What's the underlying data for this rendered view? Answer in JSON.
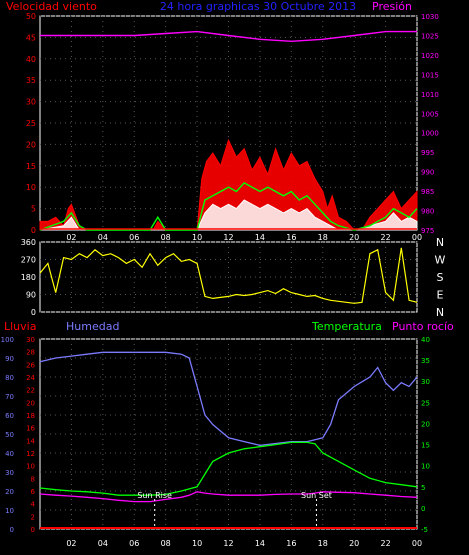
{
  "chart_data": [
    {
      "type": "line",
      "title": "24 hora graphicas 30 Octubre 2013",
      "left_label": "Velocidad viento",
      "right_label": "Presión",
      "x_ticks": [
        "02",
        "04",
        "06",
        "08",
        "10",
        "12",
        "14",
        "16",
        "18",
        "20",
        "22",
        "00"
      ],
      "y_left_ticks": [
        0,
        5,
        10,
        15,
        20,
        25,
        30,
        35,
        40,
        45,
        50
      ],
      "y_left_range": [
        0,
        50
      ],
      "y_right_ticks": [
        975,
        980,
        985,
        990,
        995,
        1000,
        1005,
        1010,
        1015,
        1020,
        1025,
        1030
      ],
      "y_right_range": [
        975,
        1030
      ],
      "grid": true,
      "colors": {
        "gust": "#ff0000",
        "wind": "#00ff00",
        "avg": "#ffffff",
        "pressure": "#ff00ff",
        "baseline": "#ff0000"
      },
      "series": [
        {
          "key": "pressure",
          "x": [
            0,
            2,
            4,
            6,
            8,
            10,
            12,
            14,
            16,
            18,
            20,
            22,
            24
          ],
          "values": [
            1025,
            1025,
            1025,
            1025,
            1025.5,
            1026,
            1025,
            1024,
            1023.5,
            1024,
            1025,
            1026,
            1026
          ]
        },
        {
          "key": "gust",
          "x": [
            0,
            0.5,
            1,
            1.5,
            1.8,
            2,
            2.5,
            3,
            5,
            7.2,
            7.5,
            8,
            10,
            10.3,
            10.6,
            11,
            11.5,
            12,
            12.5,
            13,
            13.5,
            14,
            14.5,
            15,
            15.5,
            16,
            16.5,
            17,
            17.5,
            18,
            18.3,
            18.6,
            19,
            19.5,
            20,
            20.5,
            21,
            21.5,
            22,
            22.5,
            23,
            23.5,
            24
          ],
          "values": [
            2,
            2,
            3,
            1,
            5,
            6,
            1,
            0,
            0,
            0,
            2,
            0,
            0,
            12,
            16,
            18,
            15,
            21,
            17,
            19,
            14,
            17,
            13,
            19,
            14,
            18,
            15,
            16,
            12,
            9,
            5,
            8,
            3,
            2,
            0,
            0,
            3,
            5,
            7,
            9,
            5,
            7,
            9
          ]
        },
        {
          "key": "wind",
          "x": [
            0,
            1.5,
            2,
            2.5,
            3,
            7,
            7.5,
            8,
            10,
            10.5,
            11,
            11.5,
            12,
            12.5,
            13,
            13.5,
            14,
            14.5,
            15,
            15.5,
            16,
            16.5,
            17,
            17.5,
            18,
            18.5,
            19,
            20,
            21,
            21.5,
            22,
            22.5,
            23,
            23.5,
            24
          ],
          "values": [
            0,
            2,
            4,
            1,
            0,
            0,
            3,
            0,
            0,
            7,
            8,
            9,
            10,
            9,
            11,
            10,
            9,
            10,
            9,
            8,
            9,
            7,
            8,
            6,
            4,
            2,
            1,
            0,
            1,
            2,
            3,
            5,
            4,
            3,
            5
          ]
        },
        {
          "key": "avg",
          "x": [
            0,
            1.5,
            2,
            2.5,
            3,
            10,
            10.5,
            11,
            11.5,
            12,
            12.5,
            13,
            13.5,
            14,
            14.5,
            15,
            15.5,
            16,
            16.5,
            17,
            17.5,
            18,
            18.5,
            19,
            20,
            21,
            22,
            22.5,
            23,
            23.5,
            24
          ],
          "values": [
            0,
            1,
            3,
            0,
            0,
            0,
            4,
            6,
            5,
            6,
            5,
            7,
            6,
            5,
            6,
            5,
            4,
            5,
            4,
            5,
            3,
            2,
            1,
            0,
            0,
            1,
            2,
            4,
            2,
            3,
            2
          ]
        }
      ]
    },
    {
      "type": "scatter",
      "y_ticks": [
        0,
        90,
        180,
        270,
        360
      ],
      "y_range": [
        0,
        360
      ],
      "compass": [
        "N",
        "W",
        "S",
        "E",
        "N"
      ],
      "x": [
        0,
        0.5,
        1,
        1.5,
        2,
        2.5,
        3,
        3.5,
        4,
        4.5,
        5,
        5.5,
        6,
        6.5,
        7,
        7.5,
        8,
        8.5,
        9,
        9.5,
        10,
        10.5,
        11,
        11.5,
        12,
        12.5,
        13,
        13.5,
        14,
        14.5,
        15,
        15.5,
        16,
        16.5,
        17,
        17.5,
        18,
        18.5,
        19,
        19.5,
        20,
        20.5,
        21,
        21.5,
        22,
        22.5,
        23,
        23.5,
        24
      ],
      "values": [
        200,
        250,
        100,
        280,
        270,
        300,
        280,
        320,
        290,
        300,
        280,
        250,
        270,
        230,
        300,
        240,
        280,
        300,
        260,
        270,
        250,
        80,
        70,
        75,
        80,
        90,
        85,
        90,
        100,
        110,
        95,
        120,
        100,
        90,
        80,
        85,
        70,
        60,
        55,
        50,
        45,
        50,
        300,
        320,
        100,
        60,
        330,
        60,
        50
      ],
      "color": "#ffff00"
    },
    {
      "type": "line",
      "left_label": "Lluvia",
      "humidity_label": "Humedad",
      "temp_label": "Temperatura",
      "dew_label": "Punto rocío",
      "x_ticks": [
        "02",
        "04",
        "06",
        "08",
        "10",
        "12",
        "14",
        "16",
        "18",
        "20",
        "22",
        "00"
      ],
      "y_left_ticks": [
        0,
        10,
        20,
        30,
        40,
        50,
        60,
        70,
        80,
        90,
        100
      ],
      "y_left_range": [
        0,
        100
      ],
      "y_mid_ticks": [
        0,
        2,
        4,
        6,
        8,
        10,
        12,
        14,
        16,
        18,
        20,
        22,
        24,
        26,
        28,
        30
      ],
      "y_right_ticks": [
        -5,
        0,
        5,
        10,
        15,
        20,
        25,
        30,
        35,
        40
      ],
      "y_right_range": [
        -5,
        40
      ],
      "annotations": [
        {
          "text": "Sun Rise",
          "x": 7.3
        },
        {
          "text": "Sun Set",
          "x": 17.6
        }
      ],
      "colors": {
        "humidity": "#7b7bff",
        "temperature": "#00ff00",
        "dew": "#ff00ff",
        "rain": "#ff0000"
      },
      "series": [
        {
          "key": "humidity",
          "x": [
            0,
            1,
            2,
            3,
            4,
            5,
            6,
            7,
            8,
            9,
            9.5,
            10,
            10.5,
            11,
            12,
            13,
            14,
            15,
            16,
            17,
            17.5,
            18,
            18.5,
            19,
            20,
            21,
            21.5,
            22,
            22.5,
            23,
            23.5,
            24
          ],
          "values": [
            88,
            90,
            91,
            92,
            93,
            93,
            93,
            93,
            93,
            92,
            90,
            75,
            60,
            55,
            48,
            46,
            44,
            45,
            46,
            46,
            47,
            48,
            55,
            68,
            75,
            80,
            85,
            77,
            73,
            77,
            75,
            80
          ]
        },
        {
          "key": "temperature",
          "x": [
            0,
            1,
            2,
            3,
            4,
            5,
            6,
            7,
            8,
            9,
            10,
            10.5,
            11,
            12,
            13,
            14,
            15,
            16,
            17,
            17.5,
            18,
            19,
            20,
            21,
            22,
            23,
            24
          ],
          "values": [
            4.7,
            4.3,
            4,
            3.8,
            3.5,
            3,
            3,
            3,
            3.2,
            4,
            5,
            8,
            11,
            13,
            14,
            14.5,
            15,
            15.5,
            15.5,
            15.2,
            13,
            11,
            9,
            7,
            6,
            5.5,
            5
          ]
        },
        {
          "key": "dew",
          "x": [
            0,
            1,
            2,
            3,
            4,
            5,
            6,
            7,
            8,
            9,
            9.5,
            10,
            10.5,
            11,
            12,
            13,
            14,
            15,
            16,
            17,
            17.5,
            18,
            19,
            20,
            21,
            22,
            23,
            24
          ],
          "values": [
            3.3,
            3,
            2.8,
            2.5,
            2.2,
            1.8,
            1.5,
            1.5,
            2,
            2.5,
            3,
            3.8,
            3.5,
            3.3,
            3,
            3,
            3,
            3.2,
            3.3,
            3.3,
            3.5,
            3.8,
            3.7,
            3.6,
            3.3,
            3,
            2.7,
            2.5
          ]
        },
        {
          "key": "rain",
          "x": [
            0,
            24
          ],
          "values": [
            0,
            0
          ]
        }
      ]
    }
  ]
}
